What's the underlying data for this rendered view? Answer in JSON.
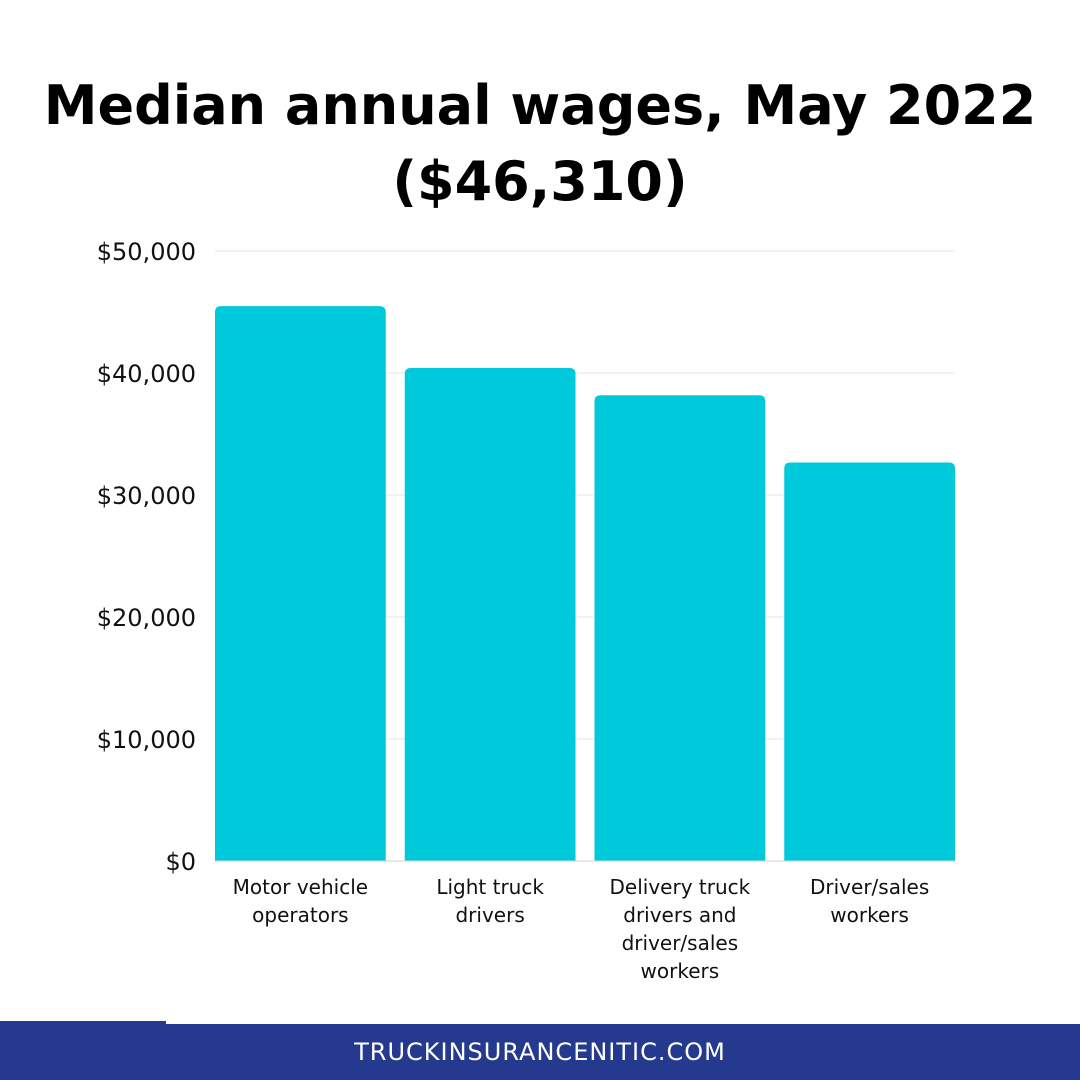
{
  "chart_data": {
    "type": "bar",
    "title": "Median annual wages, May 2022",
    "subtitle": "($46,310)",
    "categories": [
      [
        "Motor vehicle",
        "operators"
      ],
      [
        "Light truck",
        "drivers"
      ],
      [
        "Delivery truck",
        "drivers and",
        "driver/sales",
        "workers"
      ],
      [
        "Driver/sales",
        "workers"
      ]
    ],
    "values": [
      45480,
      40410,
      38180,
      32660
    ],
    "ylim": [
      0,
      50000
    ],
    "yticks": [
      0,
      10000,
      20000,
      30000,
      40000,
      50000
    ],
    "ytick_labels": [
      "$0",
      "$10,000",
      "$20,000",
      "$30,000",
      "$40,000",
      "$50,000"
    ],
    "xlabel": "",
    "ylabel": "",
    "grid": true,
    "legend": "none",
    "bar_color": "#00c9dc",
    "grid_color": "#e4e4e4"
  },
  "footer": {
    "text": "TRUCKINSURANCENITIC.COM",
    "color": "#253a8f"
  }
}
